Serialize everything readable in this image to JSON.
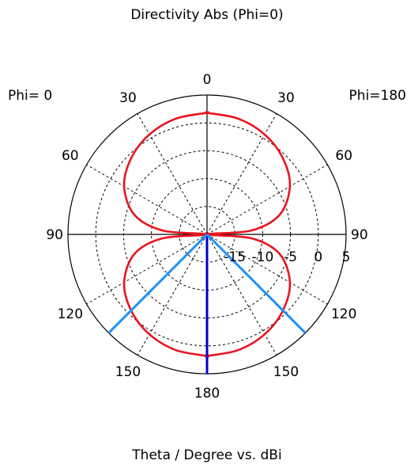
{
  "chart_data": {
    "type": "polar",
    "title": "Directivity Abs (Phi=0)",
    "xlabel": "Theta / Degree vs. dBi",
    "left_label": "Phi=  0",
    "right_label": "Phi=180",
    "radial_range": [
      -20,
      5
    ],
    "radial_ticks": [
      "-15",
      "-10",
      "-5",
      "0",
      "5"
    ],
    "radial_tick_values": [
      -15,
      -10,
      -5,
      0,
      5
    ],
    "angle_ticks": [
      {
        "label": "0",
        "theta": 0,
        "side": "top"
      },
      {
        "label": "30",
        "theta": 30,
        "side": "left"
      },
      {
        "label": "30",
        "theta": 30,
        "side": "right"
      },
      {
        "label": "60",
        "theta": 60,
        "side": "left"
      },
      {
        "label": "60",
        "theta": 60,
        "side": "right"
      },
      {
        "label": "90",
        "theta": 90,
        "side": "left"
      },
      {
        "label": "90",
        "theta": 90,
        "side": "right"
      },
      {
        "label": "120",
        "theta": 120,
        "side": "left"
      },
      {
        "label": "120",
        "theta": 120,
        "side": "right"
      },
      {
        "label": "150",
        "theta": 150,
        "side": "left"
      },
      {
        "label": "150",
        "theta": 150,
        "side": "right"
      },
      {
        "label": "180",
        "theta": 180,
        "side": "bottom"
      }
    ],
    "grid": true,
    "series": [
      {
        "color": "#e8141e",
        "theta": [
          0,
          15,
          30,
          45,
          60,
          75,
          85,
          90,
          95,
          105,
          120,
          135,
          150,
          165,
          180
        ],
        "values_phi0": [
          1.8,
          1.5,
          0.7,
          -0.7,
          -2.8,
          -6.5,
          -12,
          -20,
          -12,
          -6.5,
          -2.8,
          -0.7,
          0.7,
          1.5,
          1.8
        ],
        "values_phi180": [
          1.8,
          1.5,
          0.7,
          -0.7,
          -2.8,
          -6.5,
          -12,
          -20,
          -12,
          -6.5,
          -2.8,
          -0.7,
          0.7,
          1.5,
          1.8
        ]
      }
    ],
    "markers": [
      {
        "theta": 180,
        "side": "center",
        "color": "#0000c8"
      },
      {
        "theta": 135,
        "side": "left",
        "color": "#1e90ff"
      },
      {
        "theta": 135,
        "side": "right",
        "color": "#1e90ff"
      }
    ]
  }
}
